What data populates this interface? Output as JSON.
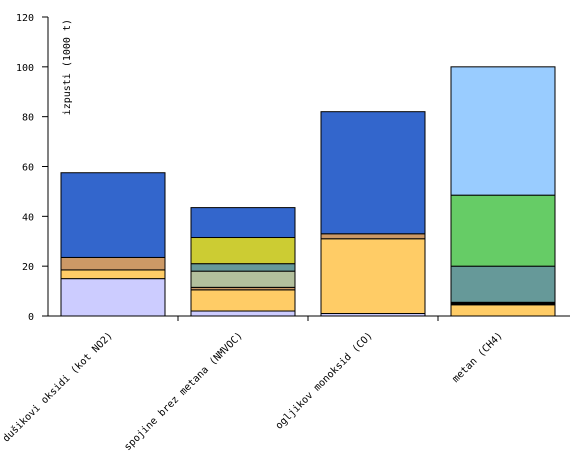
{
  "chart_data": {
    "type": "stacked_bar",
    "y_label": "izpusti (1000 t)",
    "categories": [
      "dušikovi oksidi (kot NO2)",
      "ke spojine brez metana (NMVOC)",
      "ogljikov monoksid (CO)",
      "metan (CH4)"
    ],
    "series": [
      {
        "color": "#ccccff",
        "values": [
          15,
          2,
          1,
          null
        ]
      },
      {
        "color": "#ffcc66",
        "values": [
          3.5,
          8.5,
          30,
          4.5
        ]
      },
      {
        "color": "#cc9966",
        "values": [
          5,
          1,
          2,
          null
        ]
      },
      {
        "color": "#000000",
        "values": [
          null,
          null,
          null,
          1
        ]
      },
      {
        "color": "#b3c09d",
        "values": [
          null,
          6.5,
          null,
          null
        ]
      },
      {
        "color": "#669999",
        "values": [
          null,
          3,
          null,
          14.5
        ]
      },
      {
        "color": "#cccc33",
        "values": [
          null,
          10.5,
          null,
          null
        ]
      },
      {
        "color": "#66cc66",
        "values": [
          null,
          null,
          null,
          28.5
        ]
      },
      {
        "color": "#3366cc",
        "values": [
          34,
          12,
          49,
          null
        ]
      },
      {
        "color": "#99ccff",
        "values": [
          null,
          null,
          null,
          51.5
        ]
      }
    ],
    "ylim": [
      0,
      120
    ],
    "yticks": [
      0,
      20,
      40,
      60,
      80,
      100,
      120
    ]
  }
}
